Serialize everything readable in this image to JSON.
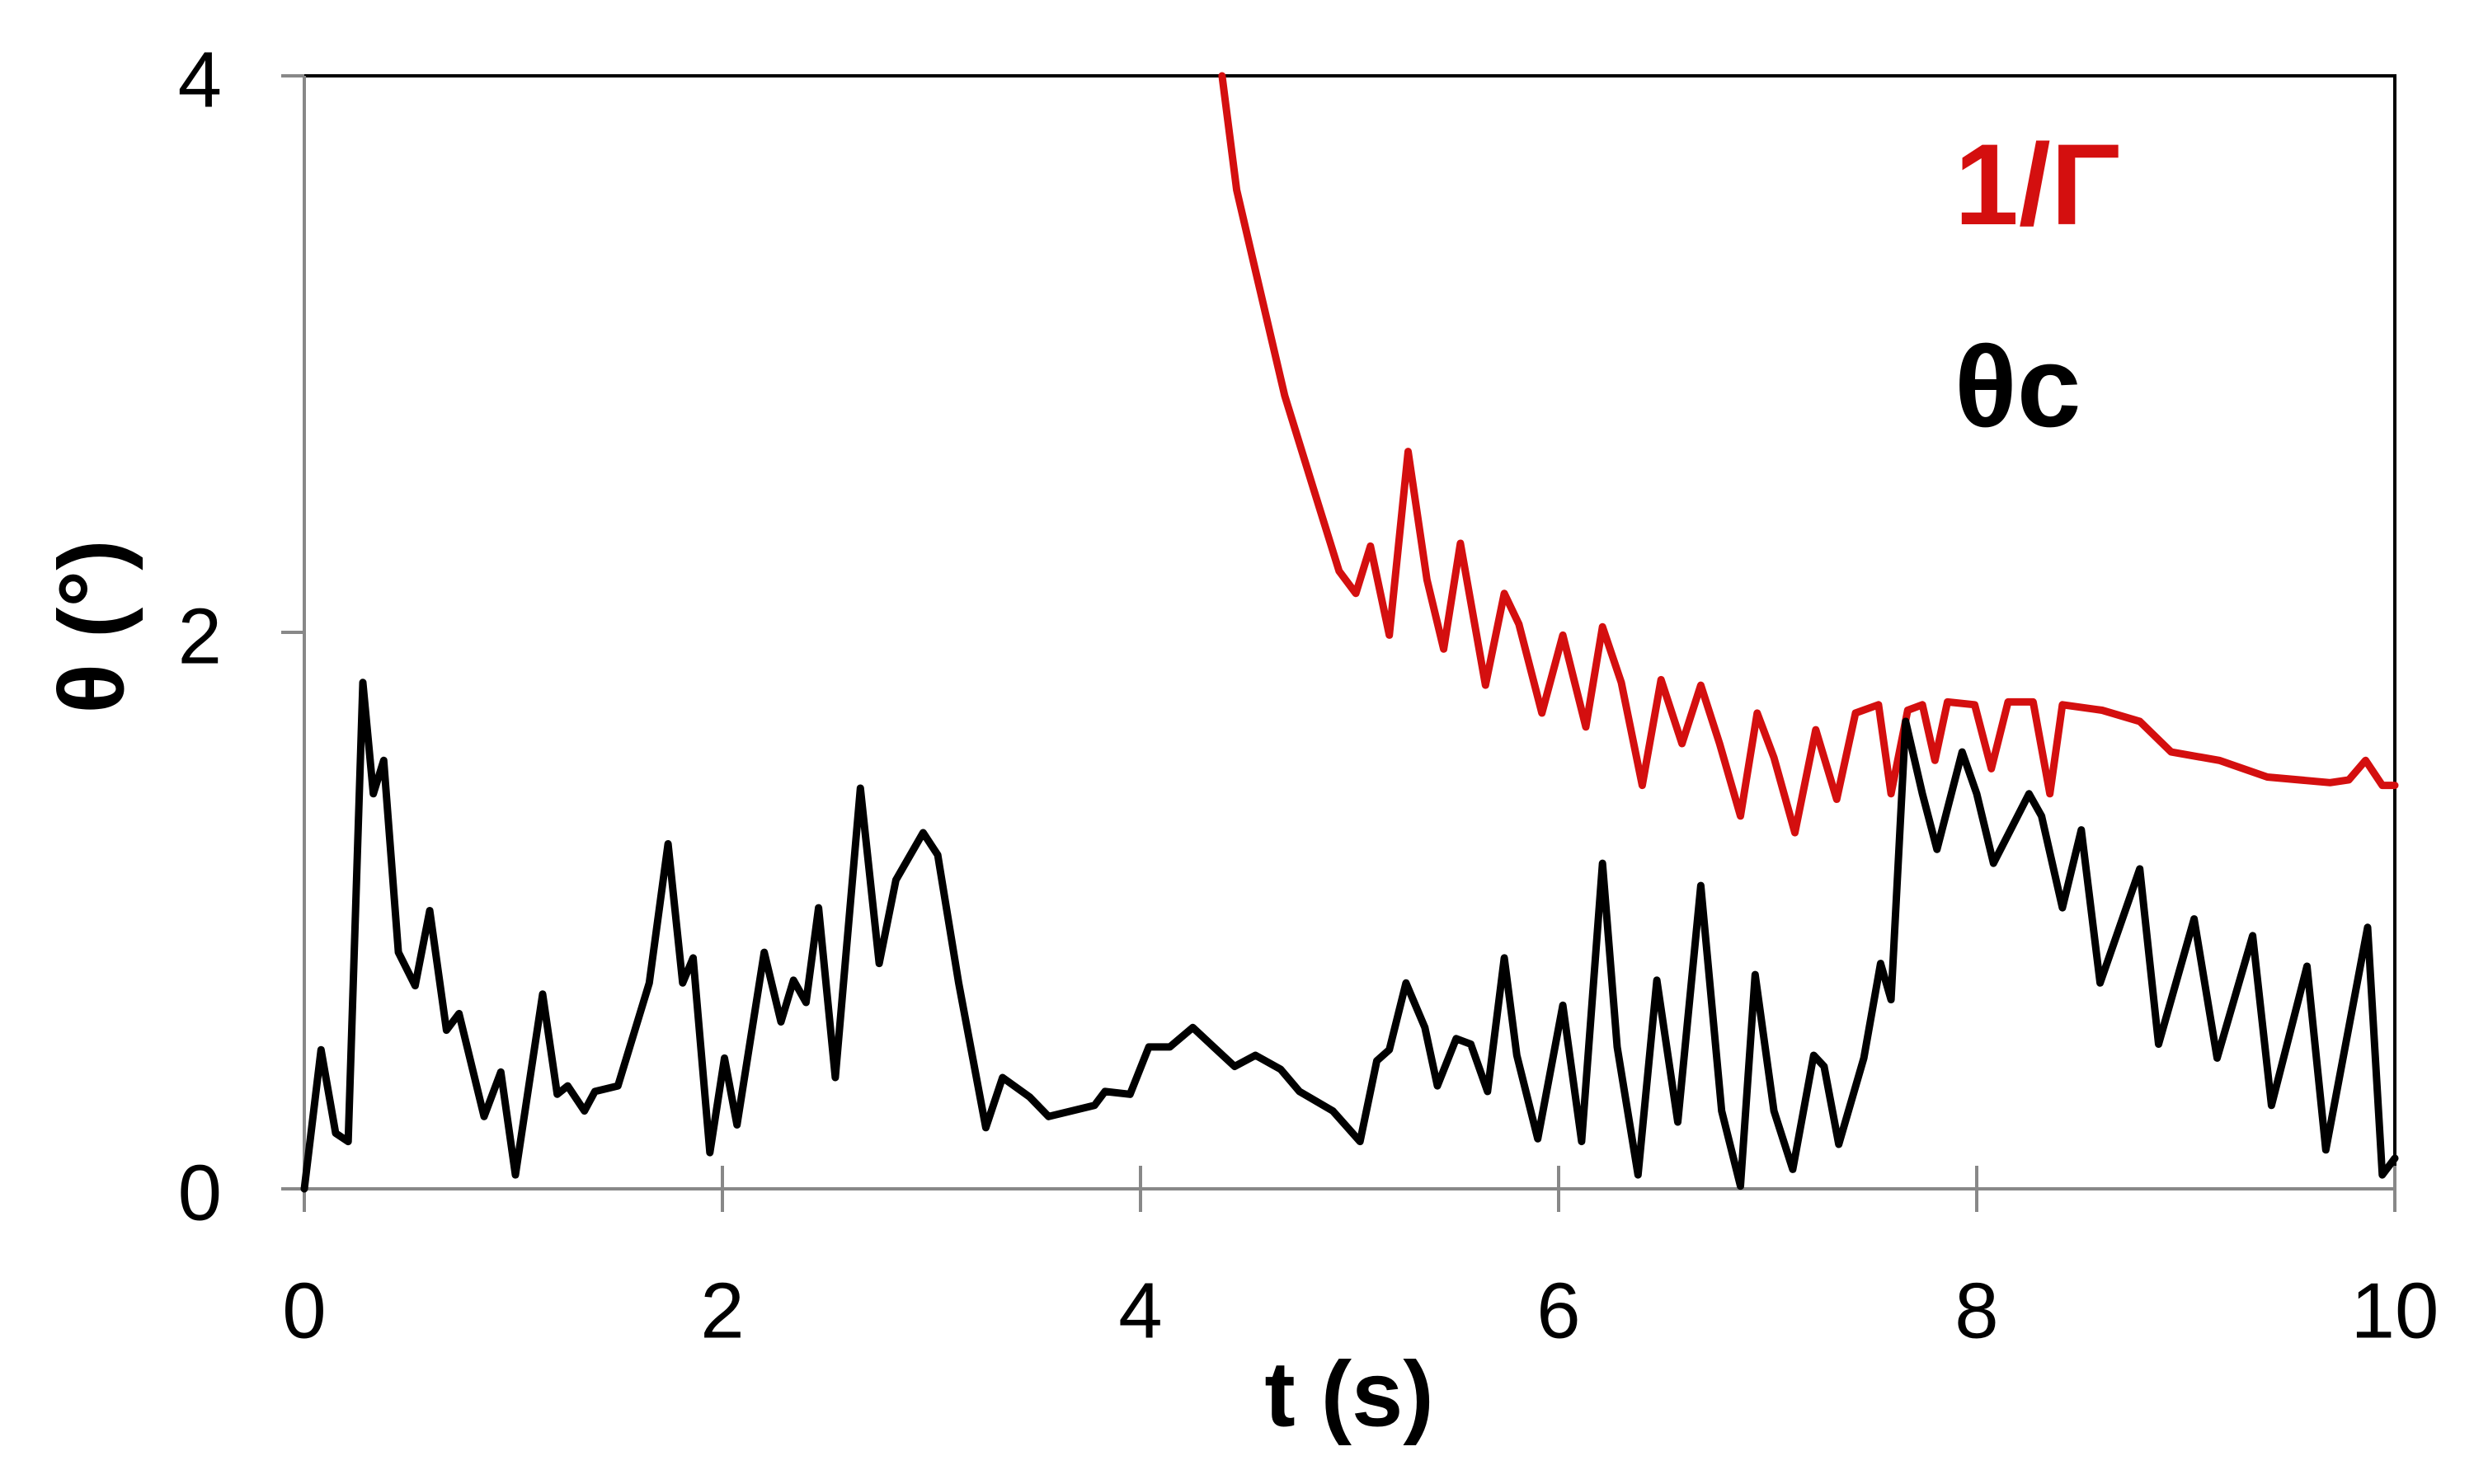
{
  "chart_data": {
    "type": "line",
    "x_label": "t (s)",
    "y_label": "θ (°)",
    "xlim": [
      0,
      10
    ],
    "xticks": [
      0,
      2,
      4,
      6,
      8,
      10
    ],
    "ylim": [
      0,
      4
    ],
    "yticks": [
      0,
      2,
      4
    ],
    "series": [
      {
        "name": "1/Γ",
        "color": "#d40f0f",
        "x": [
          4.39,
          4.46,
          4.55,
          4.69,
          4.83,
          4.95,
          5.03,
          5.1,
          5.19,
          5.28,
          5.37,
          5.45,
          5.53,
          5.65,
          5.74,
          5.81,
          5.92,
          6.02,
          6.13,
          6.21,
          6.3,
          6.4,
          6.49,
          6.59,
          6.68,
          6.77,
          6.87,
          6.95,
          7.03,
          7.13,
          7.23,
          7.33,
          7.42,
          7.53,
          7.59,
          7.67,
          7.74,
          7.8,
          7.86,
          7.99,
          8.07,
          8.15,
          8.27,
          8.35,
          8.41,
          8.6,
          8.78,
          8.93,
          9.16,
          9.39,
          9.69,
          9.78,
          9.86,
          9.94,
          10
        ],
        "values": [
          4.0,
          3.59,
          3.3,
          2.85,
          2.51,
          2.22,
          2.14,
          2.31,
          1.99,
          2.65,
          2.19,
          1.94,
          2.32,
          1.81,
          2.14,
          2.03,
          1.71,
          1.99,
          1.66,
          2.02,
          1.82,
          1.45,
          1.83,
          1.6,
          1.81,
          1.6,
          1.34,
          1.71,
          1.55,
          1.28,
          1.65,
          1.4,
          1.71,
          1.74,
          1.42,
          1.72,
          1.74,
          1.54,
          1.75,
          1.74,
          1.51,
          1.75,
          1.75,
          1.42,
          1.74,
          1.72,
          1.68,
          1.57,
          1.54,
          1.48,
          1.46,
          1.47,
          1.54,
          1.45,
          1.45
        ]
      },
      {
        "name": "θc",
        "color": "#000000",
        "x": [
          0,
          0.08,
          0.15,
          0.21,
          0.28,
          0.33,
          0.38,
          0.45,
          0.53,
          0.6,
          0.68,
          0.74,
          0.86,
          0.94,
          1.01,
          1.14,
          1.21,
          1.26,
          1.34,
          1.39,
          1.5,
          1.65,
          1.74,
          1.81,
          1.86,
          1.94,
          2.01,
          2.07,
          2.2,
          2.28,
          2.34,
          2.4,
          2.46,
          2.54,
          2.66,
          2.75,
          2.83,
          2.96,
          3.03,
          3.13,
          3.26,
          3.34,
          3.47,
          3.56,
          3.78,
          3.83,
          3.95,
          4.04,
          4.14,
          4.25,
          4.35,
          4.45,
          4.55,
          4.67,
          4.76,
          4.92,
          5.05,
          5.13,
          5.19,
          5.27,
          5.36,
          5.42,
          5.51,
          5.58,
          5.66,
          5.74,
          5.8,
          5.9,
          6.02,
          6.11,
          6.21,
          6.28,
          6.38,
          6.47,
          6.57,
          6.68,
          6.78,
          6.87,
          6.94,
          7.03,
          7.12,
          7.22,
          7.27,
          7.34,
          7.46,
          7.54,
          7.59,
          7.66,
          7.74,
          7.81,
          7.93,
          8.0,
          8.08,
          8.25,
          8.31,
          8.41,
          8.5,
          8.59,
          8.78,
          8.87,
          9.04,
          9.15,
          9.32,
          9.41,
          9.58,
          9.67,
          9.87,
          9.94,
          10
        ],
        "values": [
          0,
          0.5,
          0.2,
          0.17,
          1.82,
          1.42,
          1.54,
          0.85,
          0.73,
          1.0,
          0.57,
          0.63,
          0.26,
          0.42,
          0.05,
          0.7,
          0.34,
          0.37,
          0.28,
          0.35,
          0.37,
          0.74,
          1.24,
          0.74,
          0.83,
          0.13,
          0.47,
          0.23,
          0.85,
          0.6,
          0.75,
          0.67,
          1.01,
          0.4,
          1.44,
          0.81,
          1.11,
          1.28,
          1.2,
          0.74,
          0.22,
          0.4,
          0.33,
          0.26,
          0.3,
          0.35,
          0.34,
          0.51,
          0.51,
          0.58,
          0.51,
          0.44,
          0.48,
          0.43,
          0.35,
          0.28,
          0.17,
          0.46,
          0.5,
          0.74,
          0.58,
          0.37,
          0.54,
          0.52,
          0.35,
          0.83,
          0.48,
          0.18,
          0.66,
          0.17,
          1.17,
          0.51,
          0.05,
          0.75,
          0.24,
          1.09,
          0.28,
          0.01,
          0.77,
          0.28,
          0.07,
          0.48,
          0.44,
          0.16,
          0.47,
          0.81,
          0.68,
          1.68,
          1.42,
          1.22,
          1.57,
          1.42,
          1.17,
          1.42,
          1.34,
          1.01,
          1.29,
          0.74,
          1.15,
          0.52,
          0.97,
          0.47,
          0.91,
          0.3,
          0.8,
          0.14,
          0.94,
          0.05,
          0.11
        ]
      }
    ]
  }
}
